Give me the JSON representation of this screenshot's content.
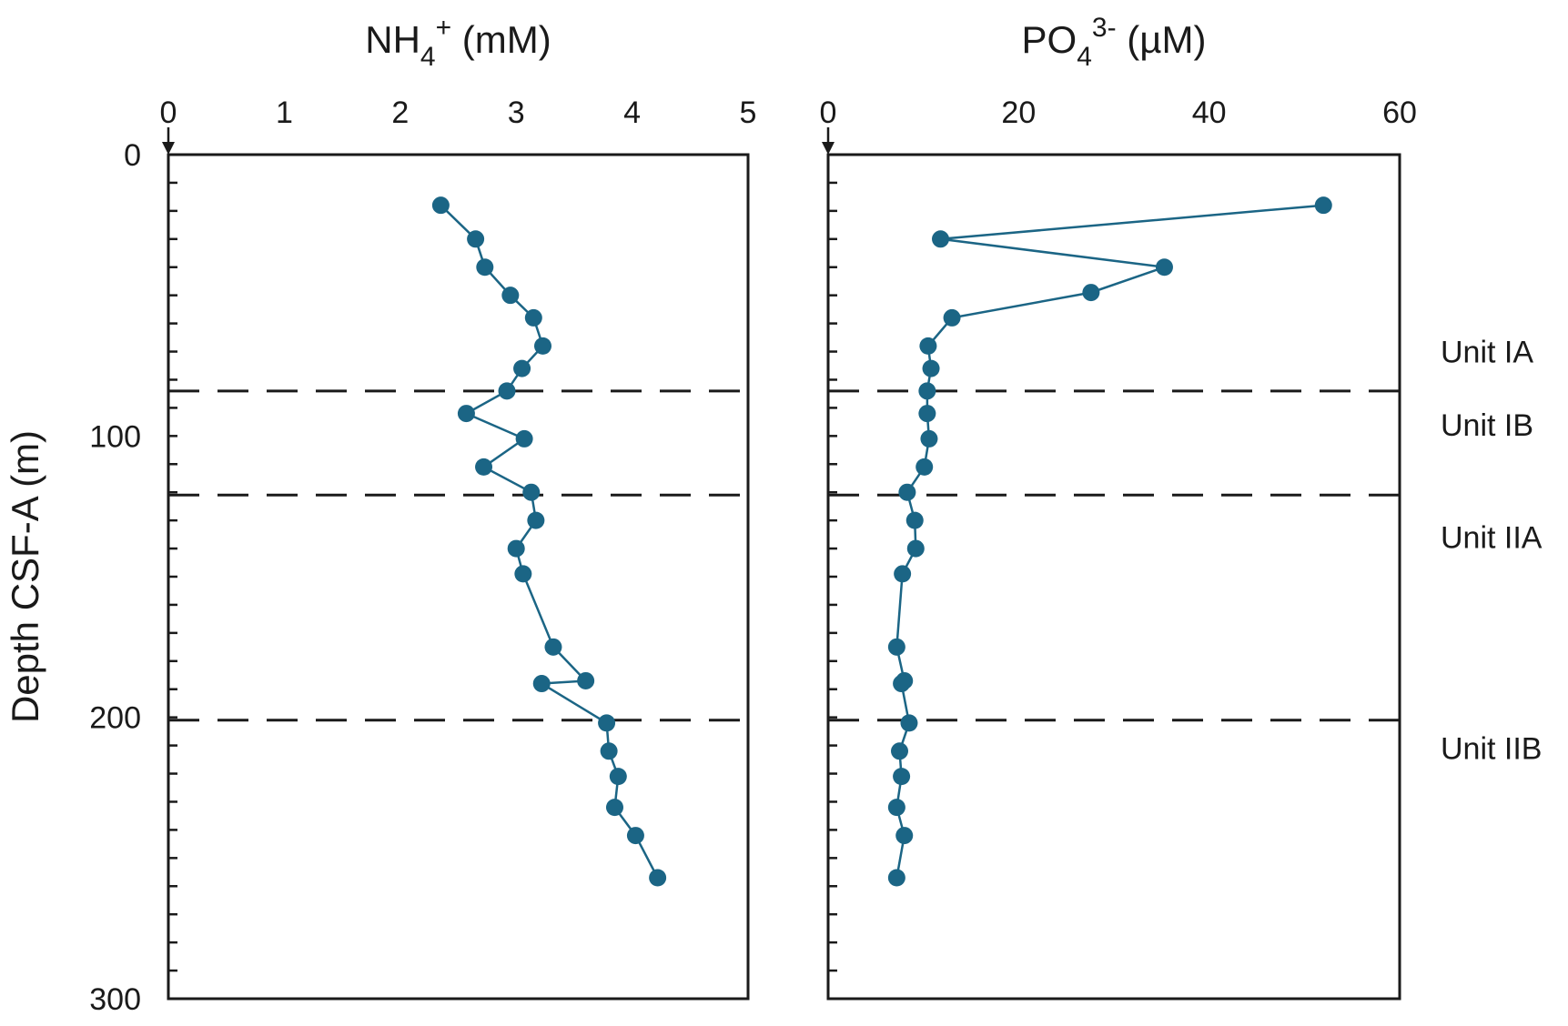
{
  "chart_data": {
    "type": "scatter",
    "y_axis": {
      "label": "Depth CSF-A (m)",
      "range": [
        0,
        300
      ],
      "ticks": [
        0,
        100,
        200,
        300
      ],
      "inverted": true
    },
    "color": "#1b6585",
    "panels": [
      {
        "id": "nh4",
        "title_main": "NH",
        "title_sub": "4",
        "title_sup": "+",
        "title_unit": " (mM)",
        "xlim": [
          0,
          5
        ],
        "x_ticks": [
          0,
          1,
          2,
          3,
          4,
          5
        ],
        "x_tick_labels": [
          "0",
          "1",
          "2",
          "3",
          "4",
          "5"
        ],
        "points": [
          {
            "x": 2.35,
            "depth": 18
          },
          {
            "x": 2.65,
            "depth": 30
          },
          {
            "x": 2.73,
            "depth": 40
          },
          {
            "x": 2.95,
            "depth": 50
          },
          {
            "x": 3.15,
            "depth": 58
          },
          {
            "x": 3.23,
            "depth": 68
          },
          {
            "x": 3.05,
            "depth": 76
          },
          {
            "x": 2.92,
            "depth": 84
          },
          {
            "x": 2.57,
            "depth": 92
          },
          {
            "x": 3.07,
            "depth": 101
          },
          {
            "x": 2.72,
            "depth": 111
          },
          {
            "x": 3.13,
            "depth": 120
          },
          {
            "x": 3.17,
            "depth": 130
          },
          {
            "x": 3.0,
            "depth": 140
          },
          {
            "x": 3.06,
            "depth": 149
          },
          {
            "x": 3.32,
            "depth": 175
          },
          {
            "x": 3.6,
            "depth": 187
          },
          {
            "x": 3.22,
            "depth": 188
          },
          {
            "x": 3.78,
            "depth": 202
          },
          {
            "x": 3.8,
            "depth": 212
          },
          {
            "x": 3.88,
            "depth": 221
          },
          {
            "x": 3.85,
            "depth": 232
          },
          {
            "x": 4.03,
            "depth": 242
          },
          {
            "x": 4.22,
            "depth": 257
          }
        ]
      },
      {
        "id": "po4",
        "title_main": "PO",
        "title_sub": "4",
        "title_sup": "3-",
        "title_unit": " (µM)",
        "xlim": [
          0,
          60
        ],
        "x_ticks": [
          0,
          20,
          40,
          60
        ],
        "x_tick_labels": [
          "0",
          "20",
          "40",
          "60"
        ],
        "points": [
          {
            "x": 52.0,
            "depth": 18
          },
          {
            "x": 11.8,
            "depth": 30
          },
          {
            "x": 35.3,
            "depth": 40
          },
          {
            "x": 27.6,
            "depth": 49
          },
          {
            "x": 13.0,
            "depth": 58
          },
          {
            "x": 10.5,
            "depth": 68
          },
          {
            "x": 10.8,
            "depth": 76
          },
          {
            "x": 10.4,
            "depth": 84
          },
          {
            "x": 10.4,
            "depth": 92
          },
          {
            "x": 10.6,
            "depth": 101
          },
          {
            "x": 10.1,
            "depth": 111
          },
          {
            "x": 8.3,
            "depth": 120
          },
          {
            "x": 9.1,
            "depth": 130
          },
          {
            "x": 9.2,
            "depth": 140
          },
          {
            "x": 7.8,
            "depth": 149
          },
          {
            "x": 7.2,
            "depth": 175
          },
          {
            "x": 8.0,
            "depth": 187
          },
          {
            "x": 7.7,
            "depth": 188
          },
          {
            "x": 8.5,
            "depth": 202
          },
          {
            "x": 7.5,
            "depth": 212
          },
          {
            "x": 7.7,
            "depth": 221
          },
          {
            "x": 7.2,
            "depth": 232
          },
          {
            "x": 8.0,
            "depth": 242
          },
          {
            "x": 7.2,
            "depth": 257
          }
        ]
      }
    ],
    "boundaries_depth": [
      84,
      121,
      201
    ],
    "units": [
      {
        "label": "Unit IA",
        "depth": 70
      },
      {
        "label": "Unit IB",
        "depth": 96
      },
      {
        "label": "Unit IIA",
        "depth": 136
      },
      {
        "label": "Unit IIB",
        "depth": 211
      }
    ]
  }
}
